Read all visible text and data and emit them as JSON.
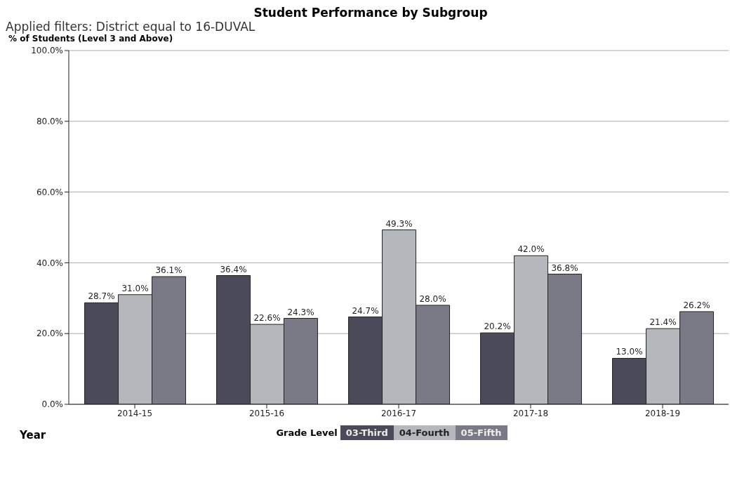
{
  "chart_data": {
    "type": "bar",
    "title": "Student Performance by Subgroup",
    "subtitle": "Applied filters: District equal to 16-DUVAL",
    "ylabel": "% of Students (Level 3 and Above)",
    "xlabel": "Year",
    "legend_title": "Grade Level",
    "categories": [
      "2014-15",
      "2015-16",
      "2016-17",
      "2017-18",
      "2018-19"
    ],
    "series": [
      {
        "name": "03-Third",
        "color": "#4a4a58",
        "values": [
          28.7,
          36.4,
          24.7,
          20.2,
          13.0
        ],
        "value_labels": [
          "28.7%",
          "36.4%",
          "24.7%",
          "20.2%",
          "13.0%"
        ]
      },
      {
        "name": "04-Fourth",
        "color": "#b4b8bc",
        "values": [
          31.0,
          22.6,
          49.3,
          42.0,
          21.4
        ],
        "value_labels": [
          "31.0%",
          "22.6%",
          "49.3%",
          "42.0%",
          "21.4%"
        ]
      },
      {
        "name": "05-Fifth",
        "color": "#7a7a86",
        "values": [
          36.1,
          24.3,
          28.0,
          36.8,
          26.2
        ],
        "value_labels": [
          "36.1%",
          "24.3%",
          "28.0%",
          "36.8%",
          "26.2%"
        ]
      }
    ],
    "ylim": [
      0,
      100
    ],
    "yticks": [
      {
        "value": 0,
        "label": "0.0%"
      },
      {
        "value": 20,
        "label": "20.0%"
      },
      {
        "value": 40,
        "label": "40.0%"
      },
      {
        "value": 60,
        "label": "60.0%"
      },
      {
        "value": 80,
        "label": "80.0%"
      },
      {
        "value": 100,
        "label": "100.0%"
      }
    ],
    "grid": "y",
    "legend": "bottom"
  }
}
